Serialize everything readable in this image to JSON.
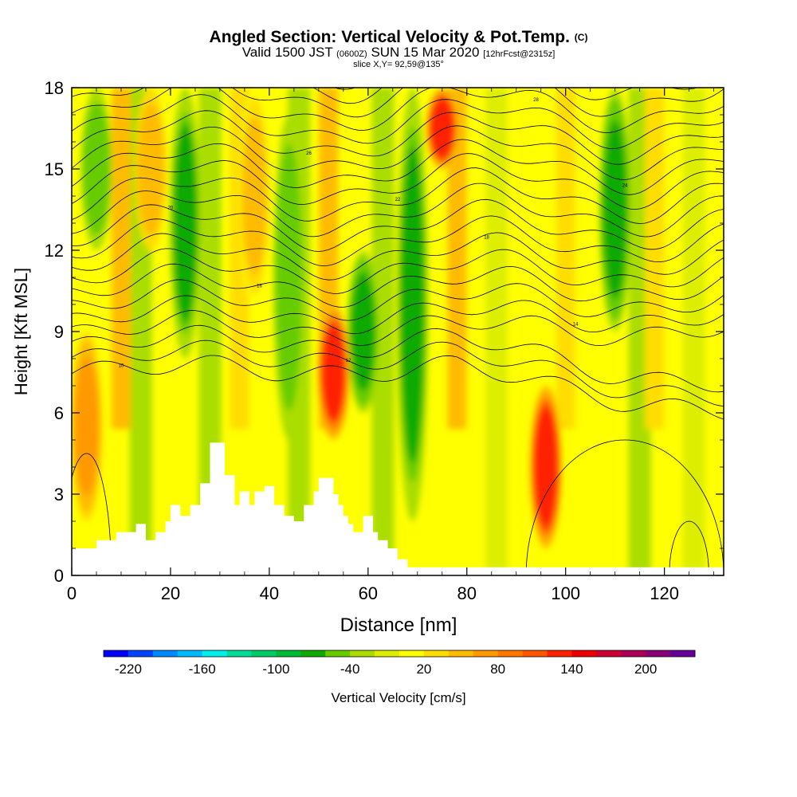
{
  "title": {
    "main": "Angled Section: Vertical Velocity & Pot.Temp.",
    "main_tag": "(C)",
    "valid_prefix": "Valid 1500 JST",
    "valid_utc": "(0600Z)",
    "valid_date": "SUN 15 Mar 2020",
    "valid_fcst": "[12hrFcst@2315z]",
    "slice": "slice X,Y= 92,59@135°"
  },
  "colorbar": {
    "label": "Vertical Velocity [cm/s]",
    "tick_labels": [
      "-220",
      "-160",
      "-100",
      "-40",
      "20",
      "80",
      "140",
      "200"
    ],
    "colors": [
      "#0000ff",
      "#0044ff",
      "#0088ff",
      "#00bbff",
      "#00eeee",
      "#00dd99",
      "#00cc66",
      "#00bb33",
      "#11aa00",
      "#66cc00",
      "#aadd00",
      "#ddee00",
      "#ffff00",
      "#ffdd00",
      "#ffbb00",
      "#ff9900",
      "#ff7700",
      "#ff5500",
      "#ff2200",
      "#ee0000",
      "#cc0033",
      "#aa0055",
      "#880077",
      "#660099"
    ]
  },
  "chart_data": {
    "type": "heatmap",
    "xlabel": "Distance [nm]",
    "ylabel": "Height [Kft MSL]",
    "xlim": [
      0,
      132
    ],
    "ylim": [
      0,
      18
    ],
    "x_ticks": [
      "0",
      "20",
      "40",
      "60",
      "80",
      "100",
      "120"
    ],
    "y_ticks": [
      "0",
      "3",
      "6",
      "9",
      "12",
      "15",
      "18"
    ],
    "field_units": "cm/s",
    "updraft_cores": [
      {
        "x": 3,
        "y_range": [
          2,
          9
        ],
        "value": 80
      },
      {
        "x": 16,
        "y_range": [
          12,
          18
        ],
        "value": 60
      },
      {
        "x": 37,
        "y_range": [
          10,
          18
        ],
        "value": 50
      },
      {
        "x": 53,
        "y_range": [
          5,
          10
        ],
        "value": 140
      },
      {
        "x": 75,
        "y_range": [
          15,
          18
        ],
        "value": 150
      },
      {
        "x": 96,
        "y_range": [
          1,
          7
        ],
        "value": 150
      }
    ],
    "downdraft_cores": [
      {
        "x": 5,
        "y_range": [
          12,
          18
        ],
        "value": -60
      },
      {
        "x": 23,
        "y_range": [
          8,
          18
        ],
        "value": -70
      },
      {
        "x": 44,
        "y_range": [
          5,
          17
        ],
        "value": -60
      },
      {
        "x": 59,
        "y_range": [
          6,
          12
        ],
        "value": -80
      },
      {
        "x": 69,
        "y_range": [
          2,
          18
        ],
        "value": -70
      },
      {
        "x": 110,
        "y_range": [
          9,
          18
        ],
        "value": -80
      }
    ],
    "terrain": [
      [
        0,
        1
      ],
      [
        5,
        1
      ],
      [
        5,
        1.3
      ],
      [
        9,
        1.3
      ],
      [
        9,
        1.6
      ],
      [
        13,
        1.6
      ],
      [
        13,
        1.9
      ],
      [
        15,
        1.9
      ],
      [
        15,
        1.3
      ],
      [
        17,
        1.3
      ],
      [
        17,
        1.6
      ],
      [
        19,
        1.6
      ],
      [
        19,
        2
      ],
      [
        20,
        2
      ],
      [
        20,
        2.6
      ],
      [
        22,
        2.6
      ],
      [
        22,
        2.2
      ],
      [
        24,
        2.2
      ],
      [
        24,
        2.6
      ],
      [
        26,
        2.6
      ],
      [
        26,
        3.4
      ],
      [
        28,
        3.4
      ],
      [
        28,
        4.9
      ],
      [
        31,
        4.9
      ],
      [
        31,
        3.7
      ],
      [
        33,
        3.7
      ],
      [
        33,
        2.6
      ],
      [
        34,
        2.6
      ],
      [
        34,
        3.1
      ],
      [
        36,
        3.1
      ],
      [
        36,
        2.6
      ],
      [
        37,
        2.6
      ],
      [
        37,
        3.1
      ],
      [
        39,
        3.1
      ],
      [
        39,
        3.3
      ],
      [
        41,
        3.3
      ],
      [
        41,
        2.6
      ],
      [
        43,
        2.6
      ],
      [
        43,
        2.2
      ],
      [
        45,
        2.2
      ],
      [
        45,
        2
      ],
      [
        47,
        2
      ],
      [
        47,
        2.6
      ],
      [
        49,
        2.6
      ],
      [
        49,
        3.1
      ],
      [
        50,
        3.1
      ],
      [
        50,
        3.6
      ],
      [
        53,
        3.6
      ],
      [
        53,
        3
      ],
      [
        54,
        3
      ],
      [
        54,
        2.6
      ],
      [
        55,
        2.6
      ],
      [
        55,
        2.2
      ],
      [
        56,
        2.2
      ],
      [
        56,
        1.9
      ],
      [
        57,
        1.9
      ],
      [
        57,
        1.6
      ],
      [
        59,
        1.6
      ],
      [
        59,
        2.2
      ],
      [
        61,
        2.2
      ],
      [
        61,
        1.6
      ],
      [
        62,
        1.6
      ],
      [
        62,
        1.3
      ],
      [
        64,
        1.3
      ],
      [
        64,
        1
      ],
      [
        66,
        1
      ],
      [
        66,
        0.6
      ],
      [
        68,
        0.6
      ],
      [
        68,
        0.3
      ],
      [
        132,
        0.3
      ]
    ],
    "isentropes": {
      "label": "potential temperature contours",
      "count": 22,
      "labels": [
        "10",
        "12",
        "14",
        "16",
        "18",
        "20",
        "22",
        "24",
        "26",
        "28",
        "30"
      ]
    }
  }
}
